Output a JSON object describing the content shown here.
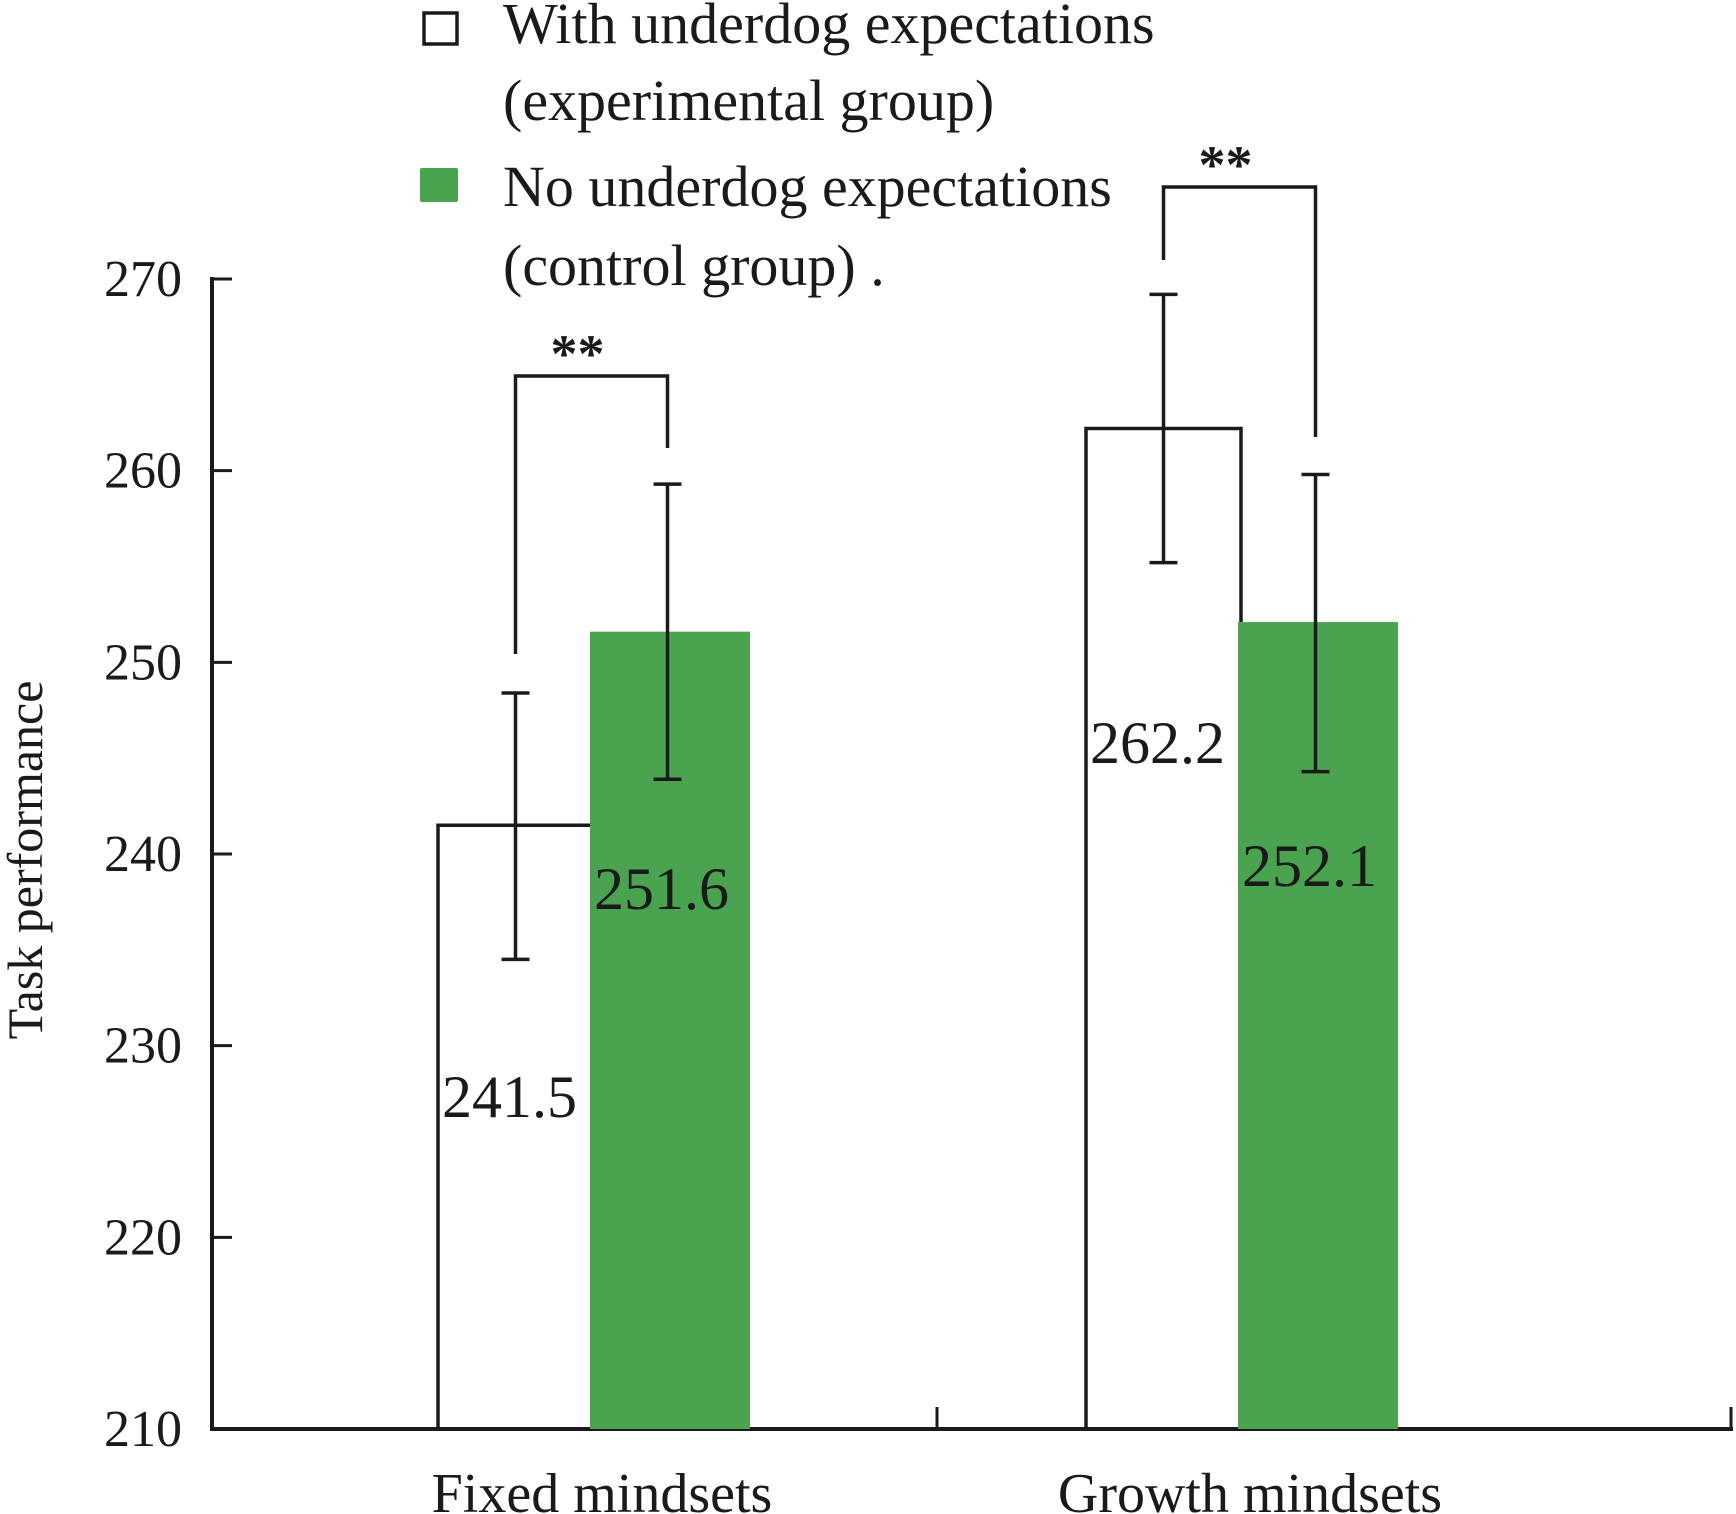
{
  "chart_data": {
    "type": "bar",
    "title": "",
    "xlabel": "",
    "ylabel": "Task performance",
    "ylim": [
      210,
      270
    ],
    "yticks": [
      210,
      220,
      230,
      240,
      250,
      260,
      270
    ],
    "grid": false,
    "legend_position": "top-center",
    "categories": [
      "Fixed mindsets",
      "Growth mindsets"
    ],
    "series": [
      {
        "name": "With underdog expectations (experimental group)",
        "legend_lines": [
          "With underdog expectations",
          "(experimental group)"
        ],
        "fill": "#ffffff",
        "stroke": "#1a1a1a",
        "values": [
          241.5,
          262.2
        ],
        "error_low": [
          234.5,
          255.2
        ],
        "error_high": [
          248.4,
          269.2
        ],
        "labels": [
          "241.5",
          "262.2"
        ]
      },
      {
        "name": "No underdog expectations (control group) .",
        "legend_lines": [
          "No underdog expectations",
          "(control group) ."
        ],
        "fill": "#4aa34f",
        "stroke": "none",
        "values": [
          251.6,
          252.1
        ],
        "error_low": [
          243.9,
          244.3
        ],
        "error_high": [
          259.3,
          259.8
        ],
        "labels": [
          "251.6",
          "252.1"
        ]
      }
    ],
    "annotations": [
      {
        "category": "Fixed mindsets",
        "text": "**",
        "type": "significance-bracket"
      },
      {
        "category": "Growth mindsets",
        "text": "**",
        "type": "significance-bracket"
      }
    ]
  }
}
